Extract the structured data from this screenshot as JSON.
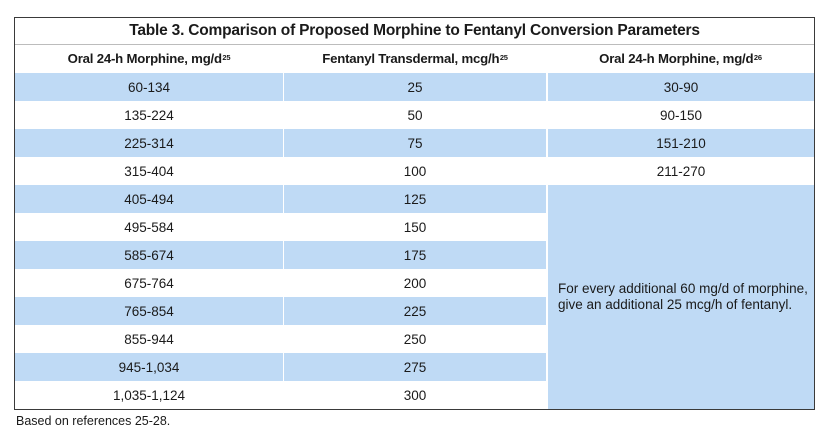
{
  "table": {
    "title": "Table 3. Comparison of Proposed Morphine to Fentanyl Conversion Parameters",
    "headers": [
      {
        "text": "Oral 24-h Morphine, mg/d",
        "sup": "25"
      },
      {
        "text": "Fentanyl Transdermal, mcg/h",
        "sup": "25"
      },
      {
        "text": "Oral 24-h Morphine, mg/d",
        "sup": "26"
      }
    ],
    "rows": [
      {
        "morphine25": "60-134",
        "fentanyl": "25",
        "morphine26": "30-90"
      },
      {
        "morphine25": "135-224",
        "fentanyl": "50",
        "morphine26": "90-150"
      },
      {
        "morphine25": "225-314",
        "fentanyl": "75",
        "morphine26": "151-210"
      },
      {
        "morphine25": "315-404",
        "fentanyl": "100",
        "morphine26": "211-270"
      },
      {
        "morphine25": "405-494",
        "fentanyl": "125"
      },
      {
        "morphine25": "495-584",
        "fentanyl": "150"
      },
      {
        "morphine25": "585-674",
        "fentanyl": "175"
      },
      {
        "morphine25": "675-764",
        "fentanyl": "200"
      },
      {
        "morphine25": "765-854",
        "fentanyl": "225"
      },
      {
        "morphine25": "855-944",
        "fentanyl": "250"
      },
      {
        "morphine25": "945-1,034",
        "fentanyl": "275"
      },
      {
        "morphine25": "1,035-1,124",
        "fentanyl": "300"
      }
    ],
    "merged_note_line1": "For every additional 60 mg/d of morphine,",
    "merged_note_line2": "give an additional 25 mcg/h of fentanyl.",
    "row_colors": {
      "odd": "#bfdaf5",
      "even": "#ffffff"
    }
  },
  "footnote": "Based on references 25-28."
}
